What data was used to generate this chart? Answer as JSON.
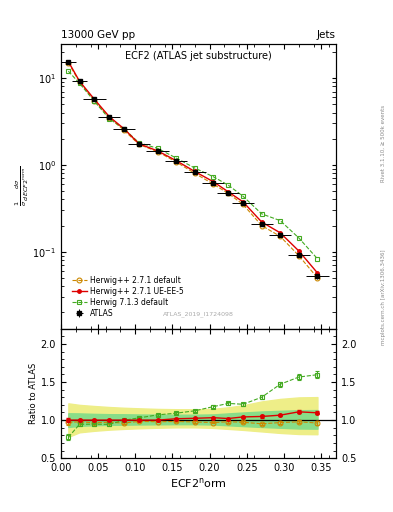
{
  "title": "ECF2 (ATLAS jet substructure)",
  "header_left": "13000 GeV pp",
  "header_right": "Jets",
  "watermark": "ATLAS_2019_I1724098",
  "xlabel": "ECF2$^{\\rm n}$orm",
  "ylabel_ratio": "Ratio to ATLAS",
  "right_label_top": "Rivet 3.1.10, ≥ 500k events",
  "right_label_bot": "mcplots.cern.ch [arXiv:1306.3436]",
  "x_centers": [
    0.01,
    0.025,
    0.045,
    0.065,
    0.085,
    0.105,
    0.13,
    0.155,
    0.18,
    0.205,
    0.225,
    0.245,
    0.27,
    0.295,
    0.32,
    0.345
  ],
  "x_widths": [
    0.01,
    0.01,
    0.015,
    0.015,
    0.015,
    0.015,
    0.015,
    0.015,
    0.015,
    0.015,
    0.015,
    0.015,
    0.015,
    0.015,
    0.015,
    0.015
  ],
  "atlas_y": [
    15.5,
    9.2,
    5.7,
    3.6,
    2.6,
    1.75,
    1.45,
    1.1,
    0.82,
    0.62,
    0.48,
    0.36,
    0.21,
    0.155,
    0.092,
    0.052
  ],
  "atlas_yerr": [
    0.4,
    0.25,
    0.18,
    0.12,
    0.09,
    0.07,
    0.055,
    0.045,
    0.035,
    0.025,
    0.018,
    0.015,
    0.009,
    0.008,
    0.006,
    0.004
  ],
  "herwig271_default_y": [
    15.0,
    9.0,
    5.5,
    3.5,
    2.5,
    1.72,
    1.42,
    1.08,
    0.8,
    0.6,
    0.47,
    0.35,
    0.2,
    0.15,
    0.09,
    0.05
  ],
  "herwig271_ueee5_y": [
    15.5,
    9.2,
    5.7,
    3.6,
    2.6,
    1.75,
    1.45,
    1.12,
    0.84,
    0.64,
    0.49,
    0.375,
    0.22,
    0.165,
    0.102,
    0.057
  ],
  "herwig713_default_y": [
    12.0,
    8.7,
    5.4,
    3.4,
    2.6,
    1.8,
    1.55,
    1.2,
    0.92,
    0.73,
    0.585,
    0.435,
    0.273,
    0.228,
    0.144,
    0.083
  ],
  "ratio_herwig271_default": [
    0.97,
    0.978,
    0.965,
    0.972,
    0.962,
    0.983,
    0.979,
    0.982,
    0.976,
    0.968,
    0.979,
    0.972,
    0.952,
    0.968,
    0.978,
    0.962
  ],
  "ratio_herwig271_default_err": [
    0.03,
    0.02,
    0.015,
    0.012,
    0.012,
    0.012,
    0.01,
    0.01,
    0.01,
    0.012,
    0.012,
    0.012,
    0.015,
    0.015,
    0.018,
    0.02
  ],
  "ratio_herwig271_ueee5": [
    1.0,
    1.0,
    1.0,
    1.0,
    1.0,
    1.0,
    1.0,
    1.018,
    1.024,
    1.032,
    1.021,
    1.042,
    1.048,
    1.065,
    1.109,
    1.096
  ],
  "ratio_herwig271_ueee5_err": [
    0.025,
    0.018,
    0.014,
    0.012,
    0.011,
    0.011,
    0.01,
    0.01,
    0.01,
    0.011,
    0.011,
    0.012,
    0.014,
    0.015,
    0.018,
    0.02
  ],
  "ratio_herwig713_default": [
    0.775,
    0.945,
    0.947,
    0.944,
    1.0,
    1.029,
    1.069,
    1.091,
    1.122,
    1.177,
    1.219,
    1.208,
    1.3,
    1.471,
    1.565,
    1.596
  ],
  "ratio_herwig713_default_err": [
    0.04,
    0.025,
    0.018,
    0.016,
    0.016,
    0.016,
    0.015,
    0.015,
    0.015,
    0.018,
    0.02,
    0.02,
    0.025,
    0.03,
    0.04,
    0.05
  ],
  "band_yellow_lo": [
    0.78,
    0.84,
    0.86,
    0.875,
    0.885,
    0.893,
    0.9,
    0.905,
    0.905,
    0.898,
    0.885,
    0.872,
    0.852,
    0.832,
    0.818,
    0.815
  ],
  "band_yellow_hi": [
    1.22,
    1.2,
    1.185,
    1.172,
    1.162,
    1.155,
    1.147,
    1.143,
    1.142,
    1.148,
    1.168,
    1.195,
    1.245,
    1.278,
    1.298,
    1.302
  ],
  "band_green_lo": [
    0.91,
    0.925,
    0.933,
    0.938,
    0.94,
    0.943,
    0.945,
    0.947,
    0.947,
    0.942,
    0.932,
    0.922,
    0.91,
    0.9,
    0.89,
    0.888
  ],
  "band_green_hi": [
    1.09,
    1.088,
    1.082,
    1.078,
    1.077,
    1.074,
    1.072,
    1.071,
    1.071,
    1.075,
    1.088,
    1.1,
    1.113,
    1.122,
    1.13,
    1.132
  ],
  "color_atlas": "#000000",
  "color_herwig271_default": "#cc8800",
  "color_herwig271_ueee5": "#dd0000",
  "color_herwig713_default": "#44aa22",
  "color_yellow_band": "#eeee88",
  "color_green_band": "#88dd88",
  "legend_labels": [
    "ATLAS",
    "Herwig++ 2.7.1 default",
    "Herwig++ 2.7.1 UE-EE-5",
    "Herwig 7.1.3 default"
  ],
  "xlim": [
    0.0,
    0.37
  ],
  "ylim_main": [
    0.013,
    25.0
  ],
  "ylim_ratio": [
    0.5,
    2.2
  ]
}
